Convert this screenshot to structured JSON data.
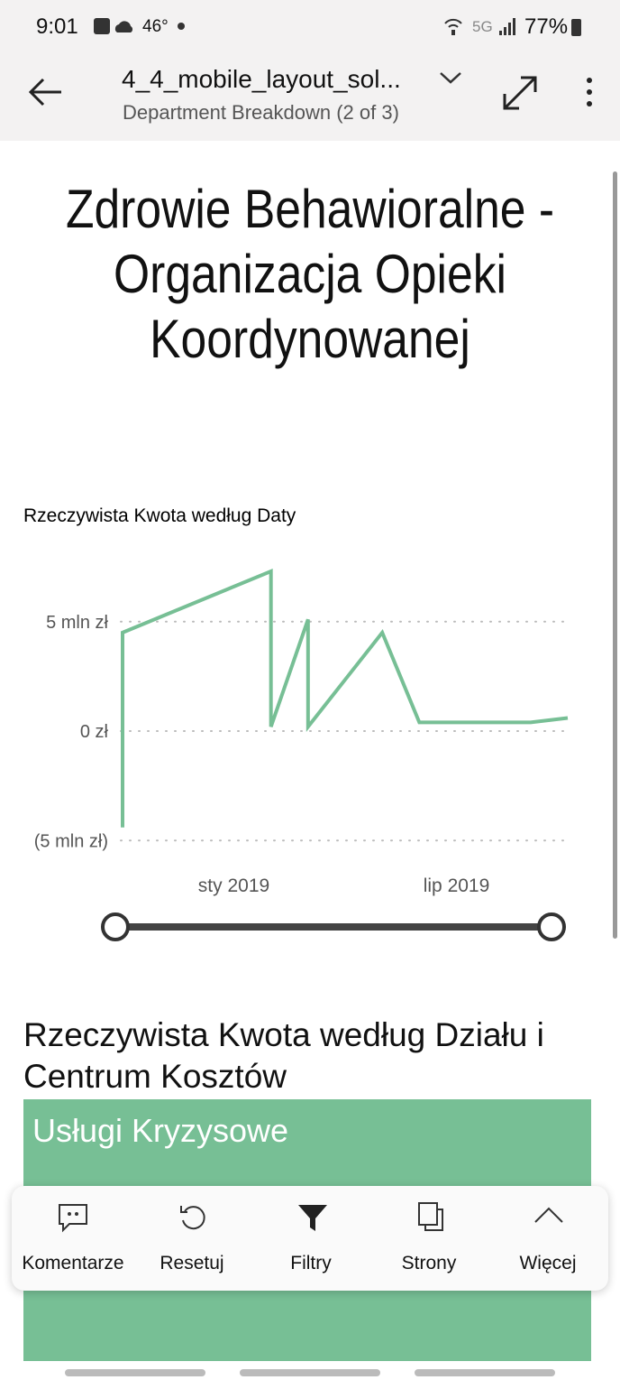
{
  "status_bar": {
    "time": "9:01",
    "temperature": "46°",
    "network": "5G",
    "battery": "77%"
  },
  "header": {
    "title": "4_4_mobile_layout_sol...",
    "subtitle": "Department Breakdown (2 of 3)"
  },
  "report_title": "Zdrowie Behawioralne - Organizacja Opieki Koordynowanej",
  "chart_data": {
    "type": "line",
    "title": "Rzeczywista Kwota według Daty",
    "x": [
      "2018-10",
      "2018-10",
      "2019-02",
      "2019-02",
      "2019-03",
      "2019-03",
      "2019-05",
      "2019-06",
      "2019-07",
      "2019-09",
      "2019-10"
    ],
    "series": [
      {
        "color": "#77bf95",
        "values": [
          -4400000,
          4500000,
          7300000,
          200000,
          5100000,
          200000,
          4500000,
          400000,
          400000,
          400000,
          600000
        ]
      }
    ],
    "xlim": [
      "2018-10",
      "2019-10"
    ],
    "xticks": [
      {
        "value": "2019-01",
        "label": "sty 2019"
      },
      {
        "value": "2019-07",
        "label": "lip 2019"
      }
    ],
    "ylim": [
      -5400000,
      8000000
    ],
    "yticks": [
      {
        "value": -5000000,
        "label": "(5 mln zł)"
      },
      {
        "value": 0,
        "label": "0 zł"
      },
      {
        "value": 5000000,
        "label": "5 mln zł"
      }
    ],
    "grid": true
  },
  "treemap": {
    "title": "Rzeczywista Kwota według Działu i Centrum Kosztów",
    "color": "#77bf95",
    "tiles": [
      {
        "label": "Usługi Kryzysowe"
      }
    ]
  },
  "toolbar": {
    "items": [
      "Komentarze",
      "Resetuj",
      "Filtry",
      "Strony",
      "Więcej"
    ]
  }
}
